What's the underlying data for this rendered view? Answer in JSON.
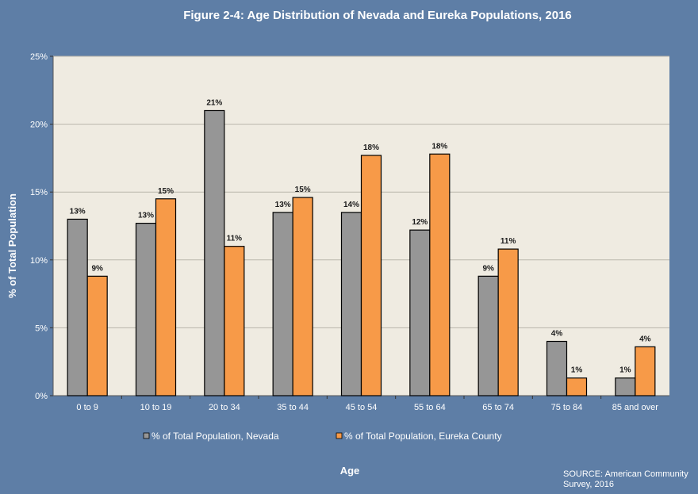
{
  "chart_data": {
    "type": "bar",
    "title": "Figure 2-4: Age Distribution of Nevada and Eureka Populations, 2016",
    "xlabel": "Age",
    "ylabel": "% of Total Population",
    "ylim": [
      0,
      25
    ],
    "yticks": [
      "0%",
      "5%",
      "10%",
      "15%",
      "20%",
      "25%"
    ],
    "categories": [
      "0 to 9",
      "10 to 19",
      "20 to 34",
      "35 to 44",
      "45 to 54",
      "55 to 64",
      "65 to 74",
      "75 to 84",
      "85 and over"
    ],
    "series": [
      {
        "name": "% of Total Population, Nevada",
        "color": "#969696",
        "values": [
          13.0,
          12.7,
          21.0,
          13.5,
          13.5,
          12.2,
          8.8,
          4.0,
          1.3
        ],
        "labels": [
          "13%",
          "13%",
          "21%",
          "13%",
          "14%",
          "12%",
          "9%",
          "4%",
          "1%"
        ]
      },
      {
        "name": "% of Total Population, Eureka County",
        "color": "#f79a48",
        "values": [
          8.8,
          14.5,
          11.0,
          14.6,
          17.7,
          17.8,
          10.8,
          1.3,
          3.6
        ],
        "labels": [
          "9%",
          "15%",
          "11%",
          "15%",
          "18%",
          "18%",
          "11%",
          "1%",
          "4%"
        ]
      }
    ],
    "grid": true,
    "legend_position": "bottom",
    "plot_background": "#efebe1"
  },
  "source": {
    "line1": "SOURCE: American Community",
    "line2": "Survey, 2016"
  }
}
